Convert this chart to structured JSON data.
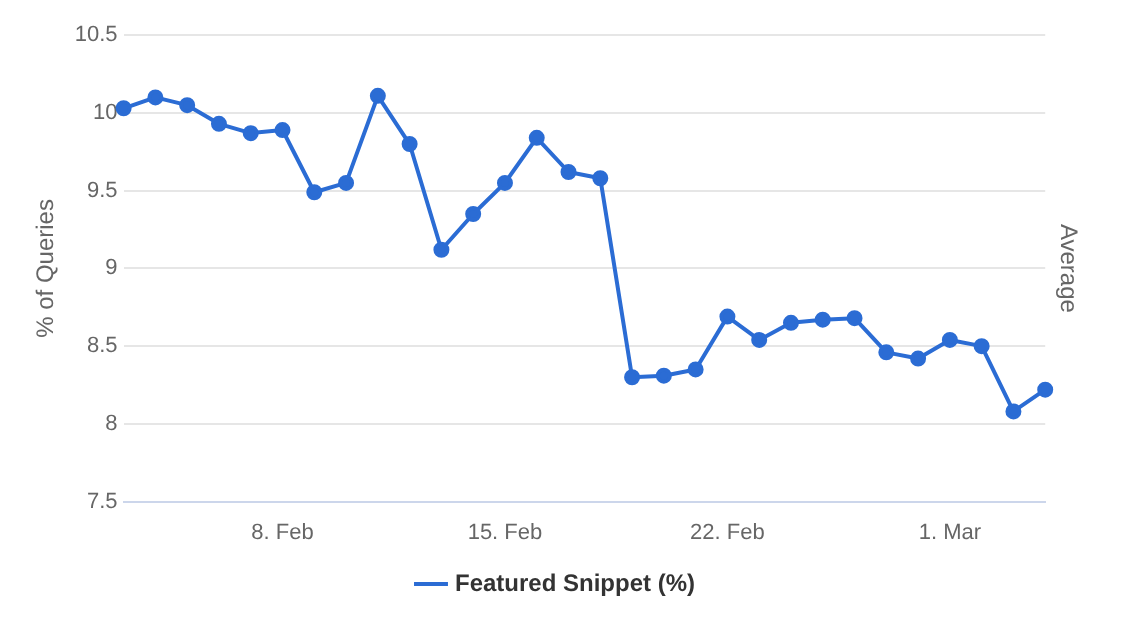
{
  "chart_data": {
    "type": "line",
    "ylabel": "% of Queries",
    "y2label": "Average",
    "x": [
      "--02-03",
      "--02-04",
      "--02-05",
      "--02-06",
      "--02-07",
      "--02-08",
      "--02-09",
      "--02-10",
      "--02-11",
      "--02-12",
      "--02-13",
      "--02-14",
      "--02-15",
      "--02-16",
      "--02-17",
      "--02-18",
      "--02-19",
      "--02-20",
      "--02-21",
      "--02-22",
      "--02-23",
      "--02-24",
      "--02-25",
      "--02-26",
      "--02-27",
      "--02-28",
      "--03-01",
      "--03-02",
      "--03-03",
      "--03-04"
    ],
    "series": [
      {
        "name": "Featured Snippet (%)",
        "color": "#2b6cd4",
        "values": [
          10.03,
          10.1,
          10.05,
          9.93,
          9.87,
          9.89,
          9.49,
          9.55,
          10.11,
          9.8,
          9.12,
          9.35,
          9.55,
          9.84,
          9.62,
          9.58,
          8.3,
          8.31,
          8.35,
          8.69,
          8.54,
          8.65,
          8.67,
          8.68,
          8.46,
          8.42,
          8.54,
          8.5,
          8.08,
          8.22
        ]
      }
    ],
    "xlim": [
      "--02-03",
      "--03-04"
    ],
    "xticks": [
      {
        "value": "--02-08",
        "label": "8. Feb"
      },
      {
        "value": "--02-15",
        "label": "15. Feb"
      },
      {
        "value": "--02-22",
        "label": "22. Feb"
      },
      {
        "value": "--03-01",
        "label": "1. Mar"
      }
    ],
    "ylim": [
      7.5,
      10.5
    ],
    "yticks": [
      7.5,
      8,
      8.5,
      9,
      9.5,
      10,
      10.5
    ],
    "grid": "y",
    "legend": "bottom",
    "marker": "circle",
    "line_style": "solid"
  }
}
